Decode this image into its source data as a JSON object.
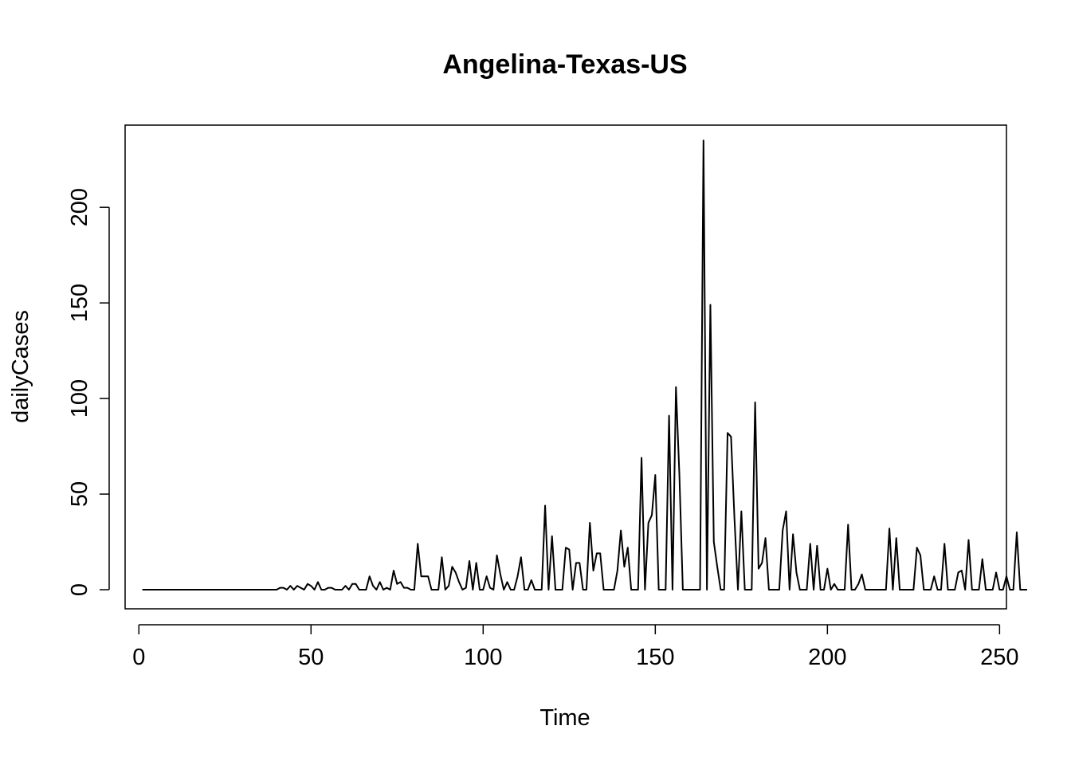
{
  "chart_data": {
    "type": "line",
    "title": "Angelina-Texas-US",
    "xlabel": "Time",
    "ylabel": "dailyCases",
    "xlim": [
      -4,
      252
    ],
    "ylim": [
      -10,
      243
    ],
    "xticks": [
      0,
      50,
      100,
      150,
      200,
      250
    ],
    "yticks": [
      0,
      50,
      100,
      150,
      200
    ],
    "xtick_labels": [
      "0",
      "50",
      "100",
      "150",
      "200",
      "250"
    ],
    "ytick_labels": [
      "0",
      "50",
      "100",
      "150",
      "200"
    ],
    "grid": false,
    "line_color": "#000000",
    "series": [
      {
        "name": "dailyCases",
        "x_start": 1,
        "values": [
          0,
          0,
          0,
          0,
          0,
          0,
          0,
          0,
          0,
          0,
          0,
          0,
          0,
          0,
          0,
          0,
          0,
          0,
          0,
          0,
          0,
          0,
          0,
          0,
          0,
          0,
          0,
          0,
          0,
          0,
          0,
          0,
          0,
          0,
          0,
          0,
          0,
          0,
          0,
          0,
          1,
          1,
          0,
          2,
          0,
          2,
          1,
          0,
          3,
          2,
          0,
          4,
          0,
          0,
          1,
          1,
          0,
          0,
          0,
          2,
          0,
          3,
          3,
          0,
          0,
          0,
          7,
          2,
          0,
          4,
          0,
          1,
          0,
          10,
          3,
          4,
          1,
          1,
          0,
          0,
          24,
          7,
          7,
          7,
          0,
          0,
          0,
          17,
          0,
          2,
          12,
          9,
          4,
          0,
          1,
          15,
          0,
          14,
          0,
          0,
          7,
          1,
          0,
          18,
          8,
          0,
          4,
          0,
          0,
          7,
          17,
          0,
          0,
          5,
          0,
          0,
          0,
          44,
          0,
          28,
          0,
          0,
          0,
          22,
          21,
          0,
          14,
          14,
          0,
          0,
          35,
          10,
          19,
          19,
          0,
          0,
          0,
          0,
          10,
          31,
          12,
          22,
          0,
          0,
          0,
          69,
          0,
          35,
          39,
          60,
          0,
          0,
          0,
          91,
          0,
          106,
          60,
          0,
          0,
          0,
          0,
          0,
          0,
          235,
          0,
          149,
          25,
          12,
          0,
          0,
          82,
          80,
          37,
          0,
          41,
          0,
          0,
          0,
          98,
          11,
          14,
          27,
          0,
          0,
          0,
          0,
          31,
          41,
          0,
          29,
          9,
          0,
          0,
          0,
          24,
          0,
          23,
          0,
          0,
          11,
          0,
          3,
          0,
          0,
          0,
          34,
          0,
          0,
          3,
          8,
          0,
          0,
          0,
          0,
          0,
          0,
          0,
          32,
          0,
          27,
          0,
          0,
          0,
          0,
          0,
          22,
          18,
          0,
          0,
          0,
          7,
          0,
          0,
          24,
          0,
          0,
          0,
          9,
          10,
          0,
          26,
          0,
          0,
          0,
          16,
          0,
          0,
          0,
          9,
          0,
          0,
          7,
          0,
          0,
          30,
          0,
          0,
          0
        ]
      }
    ]
  }
}
